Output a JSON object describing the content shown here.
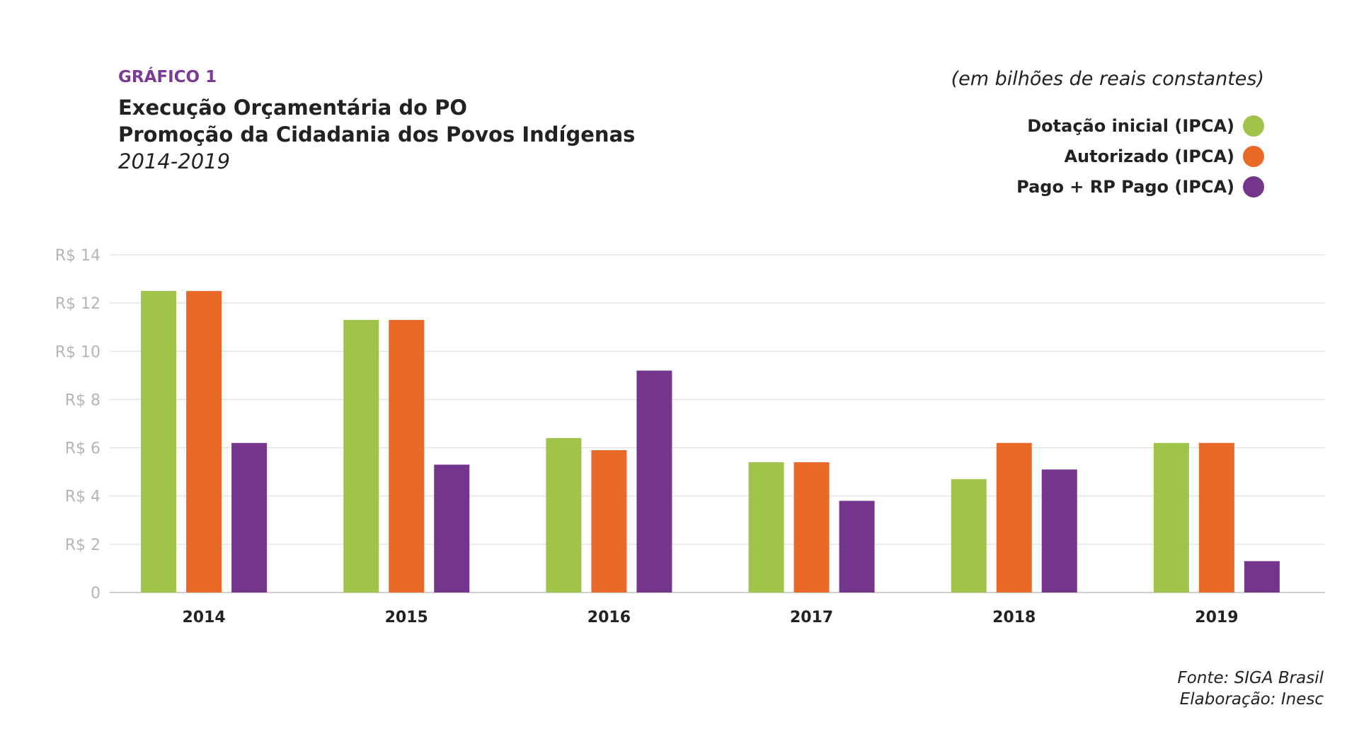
{
  "header": {
    "kicker": "GRÁFICO 1",
    "title_line1": "Execução Orçamentária do PO",
    "title_line2": "Promoção da Cidadania dos Povos Indígenas",
    "subtitle": "2014-2019",
    "unit_note": "(em bilhões de reais constantes)"
  },
  "footer": {
    "source": "Fonte: SIGA Brasil",
    "credit": "Elaboração: Inesc"
  },
  "colors": {
    "grid": "#d9d9d9",
    "axis": "#bdbdbd"
  },
  "chart_data": {
    "type": "bar",
    "title": "Execução Orçamentária do PO Promoção da Cidadania dos Povos Indígenas",
    "subtitle": "2014-2019",
    "xlabel": "",
    "ylabel": "",
    "categories": [
      "2014",
      "2015",
      "2016",
      "2017",
      "2018",
      "2019"
    ],
    "series": [
      {
        "name": "Dotação inicial (IPCA)",
        "color": "#a0c34a",
        "values": [
          12.5,
          11.3,
          6.4,
          5.4,
          4.7,
          6.2
        ]
      },
      {
        "name": "Autorizado (IPCA)",
        "color": "#e96a28",
        "values": [
          12.5,
          11.3,
          5.9,
          5.4,
          6.2,
          6.2
        ]
      },
      {
        "name": "Pago + RP Pago (IPCA)",
        "color": "#74368c",
        "values": [
          6.2,
          5.3,
          9.2,
          3.8,
          5.1,
          1.3
        ]
      }
    ],
    "yticks": [
      0,
      2,
      4,
      6,
      8,
      10,
      12,
      14
    ],
    "ytick_labels": [
      "0",
      "R$ 2",
      "R$ 4",
      "R$ 6",
      "R$ 8",
      "R$ 10",
      "R$ 12",
      "R$ 14"
    ],
    "ylim": [
      0,
      14
    ],
    "grid": true,
    "legend_position": "top-right"
  }
}
